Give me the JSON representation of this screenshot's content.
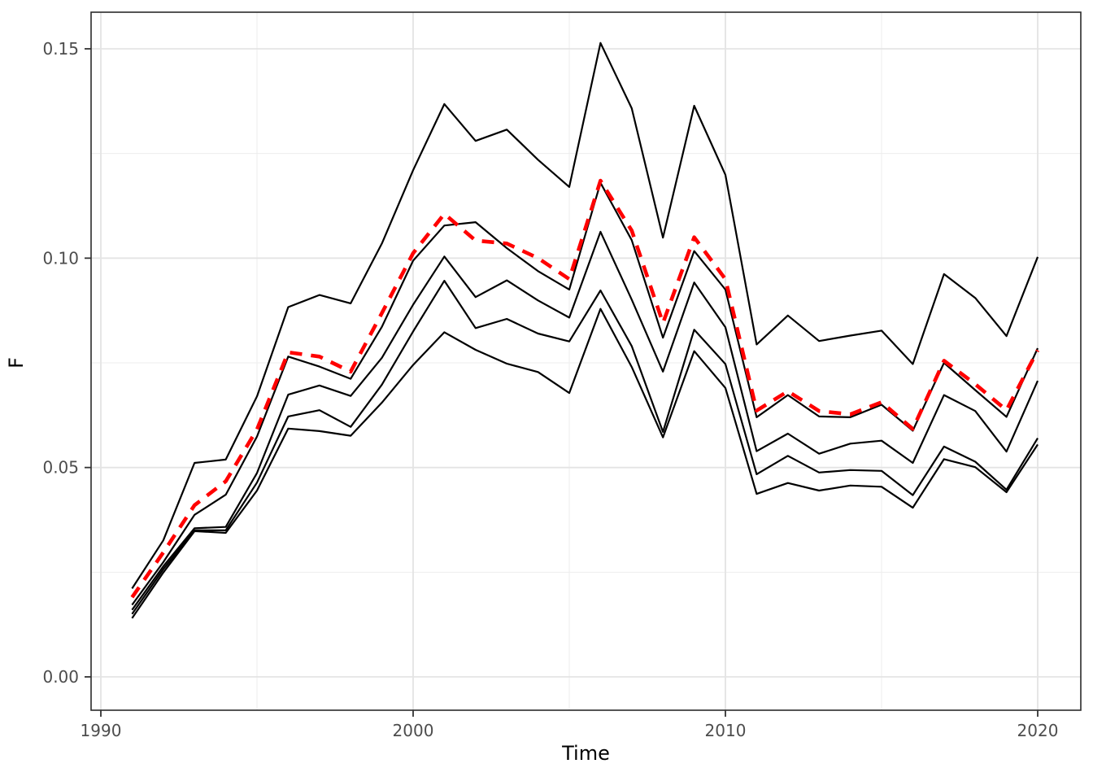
{
  "chart_data": {
    "type": "line",
    "title": "",
    "xlabel": "Time",
    "ylabel": "F",
    "grid": "on",
    "legend": "none",
    "xlim": [
      1988.7,
      2021.4
    ],
    "ylim": [
      -0.008,
      0.1587
    ],
    "x_major_ticks": [
      1990,
      2000,
      2010,
      2020
    ],
    "x_tick_labels": [
      "1990",
      "2000",
      "2010",
      "2020"
    ],
    "x_minor_ticks": [
      1995,
      2005,
      2015
    ],
    "y_major_ticks": [
      0.0,
      0.05,
      0.1,
      0.15
    ],
    "y_tick_labels": [
      "0.00",
      "0.05",
      "0.10",
      "0.15"
    ],
    "y_minor_ticks": [
      0.025,
      0.075,
      0.125
    ],
    "x": [
      1991,
      1992,
      1993,
      1994,
      1995,
      1996,
      1997,
      1998,
      1999,
      2000,
      2001,
      2002,
      2003,
      2004,
      2005,
      2006,
      2007,
      2008,
      2009,
      2010,
      2011,
      2012,
      2013,
      2014,
      2015,
      2016,
      2017,
      2018,
      2019,
      2020
    ],
    "series": [
      {
        "name": "black-line-upper",
        "color": "#000000",
        "dash": "solid",
        "width": 2.2,
        "values": [
          0.0211,
          0.0326,
          0.0511,
          0.0519,
          0.067,
          0.0883,
          0.0912,
          0.0892,
          0.1035,
          0.121,
          0.1368,
          0.128,
          0.1307,
          0.1235,
          0.117,
          0.1514,
          0.1358,
          0.1049,
          0.1364,
          0.1199,
          0.0794,
          0.0863,
          0.0802,
          0.0815,
          0.0827,
          0.0747,
          0.0962,
          0.0905,
          0.0814,
          0.1003
        ]
      },
      {
        "name": "black-line-2",
        "color": "#000000",
        "dash": "solid",
        "width": 2.2,
        "values": [
          0.0172,
          0.0274,
          0.0387,
          0.0435,
          0.0574,
          0.0765,
          0.0741,
          0.0712,
          0.0836,
          0.0994,
          0.1078,
          0.1086,
          0.1024,
          0.0969,
          0.0925,
          0.118,
          0.1043,
          0.081,
          0.1017,
          0.0925,
          0.062,
          0.0673,
          0.0622,
          0.062,
          0.065,
          0.0588,
          0.075,
          0.0685,
          0.0621,
          0.0785
        ]
      },
      {
        "name": "black-line-3",
        "color": "#000000",
        "dash": "solid",
        "width": 2.2,
        "values": [
          0.016,
          0.0264,
          0.0355,
          0.0358,
          0.0487,
          0.0674,
          0.0696,
          0.0671,
          0.0762,
          0.0889,
          0.1004,
          0.0907,
          0.0947,
          0.0899,
          0.0858,
          0.1063,
          0.0901,
          0.0729,
          0.0942,
          0.0835,
          0.0539,
          0.0581,
          0.0533,
          0.0557,
          0.0564,
          0.0511,
          0.0673,
          0.0635,
          0.0538,
          0.0707
        ]
      },
      {
        "name": "black-line-4",
        "color": "#000000",
        "dash": "solid",
        "width": 2.2,
        "values": [
          0.015,
          0.0257,
          0.035,
          0.035,
          0.0464,
          0.0622,
          0.0637,
          0.0597,
          0.0698,
          0.0825,
          0.0946,
          0.0833,
          0.0855,
          0.082,
          0.0801,
          0.0923,
          0.079,
          0.0585,
          0.0829,
          0.0747,
          0.0484,
          0.0528,
          0.0488,
          0.0494,
          0.0492,
          0.0434,
          0.055,
          0.0514,
          0.0447,
          0.057
        ]
      },
      {
        "name": "black-line-lower",
        "color": "#000000",
        "dash": "solid",
        "width": 2.2,
        "values": [
          0.014,
          0.0249,
          0.0348,
          0.0344,
          0.0445,
          0.0593,
          0.0587,
          0.0576,
          0.0655,
          0.0745,
          0.0823,
          0.0781,
          0.0748,
          0.0728,
          0.0678,
          0.0879,
          0.074,
          0.0572,
          0.0778,
          0.069,
          0.0437,
          0.0463,
          0.0445,
          0.0457,
          0.0454,
          0.0404,
          0.052,
          0.0501,
          0.0441,
          0.0555
        ]
      },
      {
        "name": "red-dashed-line",
        "color": "#FF0000",
        "dash": "dashed",
        "width": 4.6,
        "values": [
          0.019,
          0.0297,
          0.041,
          0.0467,
          0.0591,
          0.0775,
          0.0765,
          0.0729,
          0.0869,
          0.1012,
          0.1106,
          0.1042,
          0.1035,
          0.1,
          0.095,
          0.1185,
          0.1066,
          0.0845,
          0.105,
          0.095,
          0.0636,
          0.0682,
          0.0635,
          0.0627,
          0.0656,
          0.0592,
          0.0755,
          0.0699,
          0.0637,
          0.078
        ]
      }
    ],
    "colors": {
      "grid_major": "#e4e4e4",
      "grid_minor": "#ededed",
      "panel_border": "#2b2b2b",
      "tick_mark": "#333333",
      "tick_label": "#4d4d4d",
      "axis_title": "#000000",
      "panel_background": "#ffffff"
    }
  }
}
